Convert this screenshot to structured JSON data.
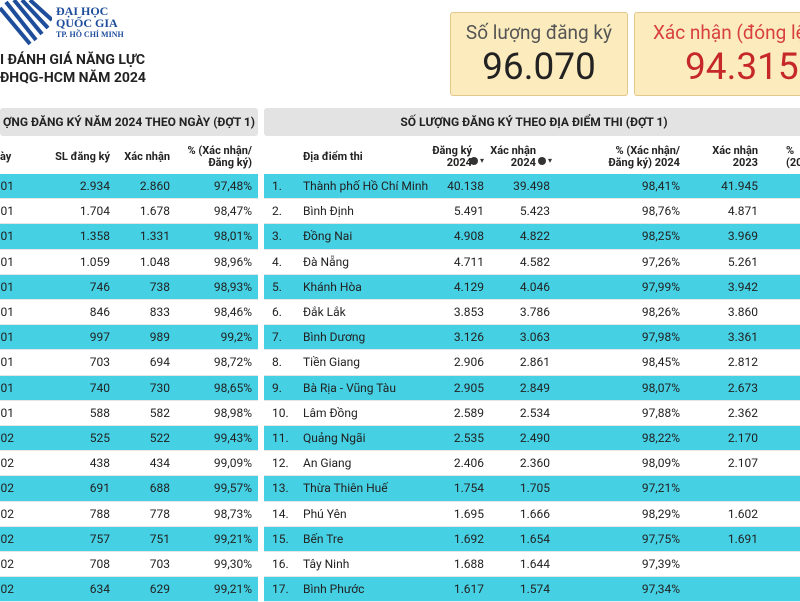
{
  "logo": {
    "line1": "ĐẠI HỌC",
    "line2": "QUỐC GIA",
    "line3": "TP. HỒ CHÍ MINH"
  },
  "header": {
    "title_line1": "I ĐÁNH GIÁ NĂNG LỰC",
    "title_line2": "ĐHQG-HCM NĂM 2024"
  },
  "kpis": [
    {
      "label": "Số lượng đăng ký",
      "value": "96.070"
    },
    {
      "label": "Xác nhận (đóng lệ",
      "value": "94.315"
    }
  ],
  "daily_table": {
    "title": "ỢNG ĐĂNG KÝ NĂM 2024 THEO NGÀY (ĐỢT 1)",
    "columns": [
      "ày",
      "SL đăng ký",
      "Xác nhận",
      "% (Xác nhận/\nĐăng ký)"
    ],
    "rows": [
      [
        "/01",
        "2.934",
        "2.860",
        "97,48%"
      ],
      [
        "/01",
        "1.704",
        "1.678",
        "98,47%"
      ],
      [
        "/01",
        "1.358",
        "1.331",
        "98,01%"
      ],
      [
        "/01",
        "1.059",
        "1.048",
        "98,96%"
      ],
      [
        "/01",
        "746",
        "738",
        "98,93%"
      ],
      [
        "/01",
        "846",
        "833",
        "98,46%"
      ],
      [
        "/01",
        "997",
        "989",
        "99,2%"
      ],
      [
        "/01",
        "703",
        "694",
        "98,72%"
      ],
      [
        "/01",
        "740",
        "730",
        "98,65%"
      ],
      [
        "/01",
        "588",
        "582",
        "98,98%"
      ],
      [
        "/02",
        "525",
        "522",
        "99,43%"
      ],
      [
        "/02",
        "438",
        "434",
        "99,09%"
      ],
      [
        "/02",
        "691",
        "688",
        "99,57%"
      ],
      [
        "/02",
        "788",
        "778",
        "98,73%"
      ],
      [
        "/02",
        "757",
        "751",
        "99,21%"
      ],
      [
        "/02",
        "708",
        "703",
        "99,30%"
      ],
      [
        "/02",
        "634",
        "629",
        "99,21%"
      ]
    ]
  },
  "location_table": {
    "title": "SỐ LƯỢNG ĐĂNG KÝ THEO ĐỊA ĐIỂM THI (ĐỢT 1)",
    "columns": [
      "Địa điểm thi",
      "Đăng ký\n2024",
      "Xác nhận\n2024",
      "% (Xác nhận/\nĐăng ký) 2024",
      "Xác nhận\n2023",
      "%\n(20"
    ],
    "rows": [
      [
        "1.",
        "Thành phố Hồ Chí Minh",
        "40.138",
        "39.498",
        "98,41%",
        "41.945"
      ],
      [
        "2.",
        "Bình Định",
        "5.491",
        "5.423",
        "98,76%",
        "4.871"
      ],
      [
        "3.",
        "Đồng Nai",
        "4.908",
        "4.822",
        "98,25%",
        "3.969"
      ],
      [
        "4.",
        "Đà Nẵng",
        "4.711",
        "4.582",
        "97,26%",
        "5.261"
      ],
      [
        "5.",
        "Khánh Hòa",
        "4.129",
        "4.046",
        "97,99%",
        "3.942"
      ],
      [
        "6.",
        "Đắk Lắk",
        "3.853",
        "3.786",
        "98,26%",
        "3.860"
      ],
      [
        "7.",
        "Bình Dương",
        "3.126",
        "3.063",
        "97,98%",
        "3.361"
      ],
      [
        "8.",
        "Tiền Giang",
        "2.906",
        "2.861",
        "98,45%",
        "2.812"
      ],
      [
        "9.",
        "Bà Rịa - Vũng Tàu",
        "2.905",
        "2.849",
        "98,07%",
        "2.673"
      ],
      [
        "10.",
        "Lâm Đồng",
        "2.589",
        "2.534",
        "97,88%",
        "2.362"
      ],
      [
        "11.",
        "Quảng Ngãi",
        "2.535",
        "2.490",
        "98,22%",
        "2.170"
      ],
      [
        "12.",
        "An Giang",
        "2.406",
        "2.360",
        "98,09%",
        "2.107"
      ],
      [
        "13.",
        "Thừa Thiên Huế",
        "1.754",
        "1.705",
        "97,21%",
        null
      ],
      [
        "14.",
        "Phú Yên",
        "1.695",
        "1.666",
        "98,29%",
        "1.602"
      ],
      [
        "15.",
        "Bến Tre",
        "1.692",
        "1.654",
        "97,75%",
        "1.691"
      ],
      [
        "16.",
        "Tây Ninh",
        "1.688",
        "1.644",
        "97,39%",
        null
      ],
      [
        "17.",
        "Bình Phước",
        "1.617",
        "1.574",
        "97,34%",
        null
      ]
    ]
  }
}
